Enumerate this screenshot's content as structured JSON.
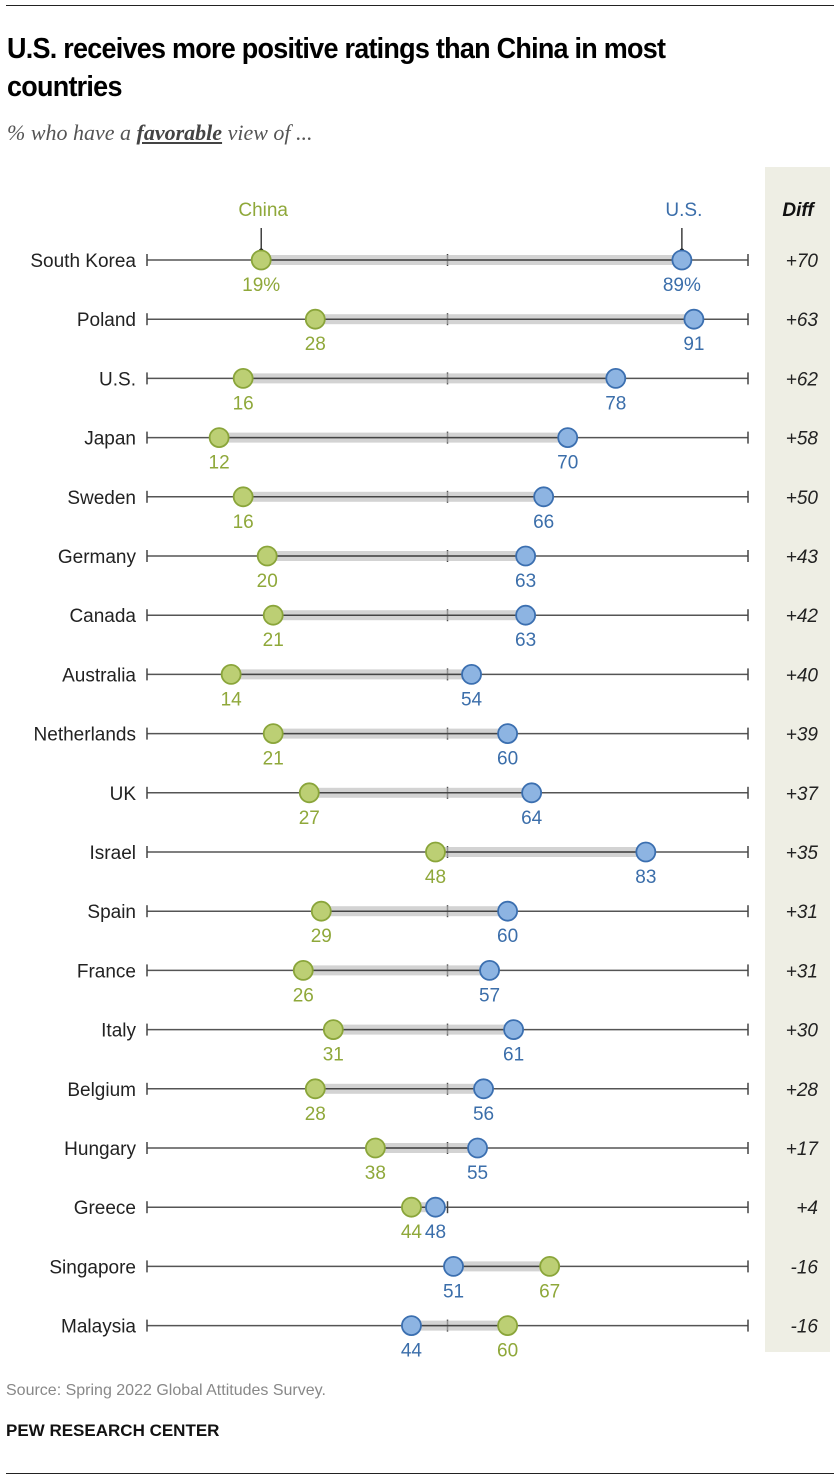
{
  "title": "U.S. receives more positive ratings than China in most countries",
  "subtitle": {
    "before": "% who have a ",
    "emphasis": "favorable",
    "after": " view of ..."
  },
  "source": "Source: Spring 2022 Global Attitudes Survey.",
  "credit": "PEW RESEARCH CENTER",
  "chart_data": {
    "type": "dot-plot",
    "xlim": [
      0,
      100
    ],
    "axis_ticks": [
      0,
      50,
      100
    ],
    "diff_header": "Diff",
    "series": [
      {
        "name": "China",
        "color": "#bccf74",
        "stroke": "#8aa53a",
        "label_color": "#8fa83a"
      },
      {
        "name": "U.S.",
        "color": "#8db4e2",
        "stroke": "#3b6fb0",
        "label_color": "#3b6eaa"
      }
    ],
    "diff_panel_color": "#eeeee4",
    "first_row_suffix": "%",
    "rows": [
      {
        "country": "South Korea",
        "china": 19,
        "us": 89,
        "diff": "+70"
      },
      {
        "country": "Poland",
        "china": 28,
        "us": 91,
        "diff": "+63"
      },
      {
        "country": "U.S.",
        "china": 16,
        "us": 78,
        "diff": "+62"
      },
      {
        "country": "Japan",
        "china": 12,
        "us": 70,
        "diff": "+58"
      },
      {
        "country": "Sweden",
        "china": 16,
        "us": 66,
        "diff": "+50"
      },
      {
        "country": "Germany",
        "china": 20,
        "us": 63,
        "diff": "+43"
      },
      {
        "country": "Canada",
        "china": 21,
        "us": 63,
        "diff": "+42"
      },
      {
        "country": "Australia",
        "china": 14,
        "us": 54,
        "diff": "+40"
      },
      {
        "country": "Netherlands",
        "china": 21,
        "us": 60,
        "diff": "+39"
      },
      {
        "country": "UK",
        "china": 27,
        "us": 64,
        "diff": "+37"
      },
      {
        "country": "Israel",
        "china": 48,
        "us": 83,
        "diff": "+35"
      },
      {
        "country": "Spain",
        "china": 29,
        "us": 60,
        "diff": "+31"
      },
      {
        "country": "France",
        "china": 26,
        "us": 57,
        "diff": "+31"
      },
      {
        "country": "Italy",
        "china": 31,
        "us": 61,
        "diff": "+30"
      },
      {
        "country": "Belgium",
        "china": 28,
        "us": 56,
        "diff": "+28"
      },
      {
        "country": "Hungary",
        "china": 38,
        "us": 55,
        "diff": "+17"
      },
      {
        "country": "Greece",
        "china": 44,
        "us": 48,
        "diff": "+4"
      },
      {
        "country": "Singapore",
        "china": 67,
        "us": 51,
        "diff": "-16"
      },
      {
        "country": "Malaysia",
        "china": 60,
        "us": 44,
        "diff": "-16"
      }
    ]
  }
}
